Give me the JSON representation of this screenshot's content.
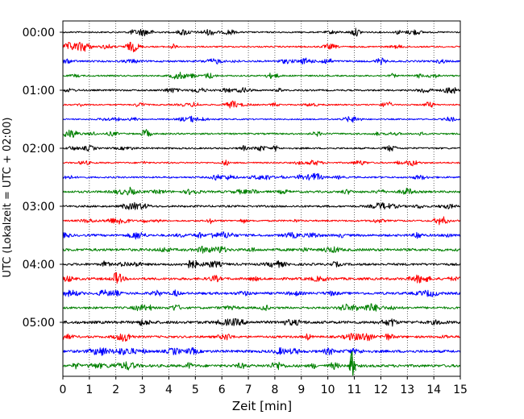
{
  "chart_data": {
    "type": "line",
    "subtype": "helicorder",
    "title": "",
    "xlabel": "Zeit  [min]",
    "ylabel": "UTC (Lokalzeit = UTC + 02:00)",
    "xlim": [
      0,
      15
    ],
    "x_ticks": [
      "0",
      "1",
      "2",
      "3",
      "4",
      "5",
      "6",
      "7",
      "8",
      "9",
      "10",
      "11",
      "12",
      "13",
      "14",
      "15"
    ],
    "y_tick_labels": [
      "00:00",
      "01:00",
      "02:00",
      "03:00",
      "04:00",
      "05:00"
    ],
    "grid": "vertical dotted",
    "trace_colors": [
      "#000000",
      "#ff0000",
      "#0000ff",
      "#008000"
    ],
    "traces": [
      {
        "start": "00:00",
        "amplitude": 0.9
      },
      {
        "start": "00:15",
        "amplitude": 0.9
      },
      {
        "start": "00:30",
        "amplitude": 1.1
      },
      {
        "start": "00:45",
        "amplitude": 0.9
      },
      {
        "start": "01:00",
        "amplitude": 1.0
      },
      {
        "start": "01:15",
        "amplitude": 0.8
      },
      {
        "start": "01:30",
        "amplitude": 0.8
      },
      {
        "start": "01:45",
        "amplitude": 1.0
      },
      {
        "start": "02:00",
        "amplitude": 1.0
      },
      {
        "start": "02:15",
        "amplitude": 0.9
      },
      {
        "start": "02:30",
        "amplitude": 1.0
      },
      {
        "start": "02:45",
        "amplitude": 1.3
      },
      {
        "start": "03:00",
        "amplitude": 1.2
      },
      {
        "start": "03:15",
        "amplitude": 1.0
      },
      {
        "start": "03:30",
        "amplitude": 1.4
      },
      {
        "start": "03:45",
        "amplitude": 1.6
      },
      {
        "start": "04:00",
        "amplitude": 1.4
      },
      {
        "start": "04:15",
        "amplitude": 1.5
      },
      {
        "start": "04:30",
        "amplitude": 1.5
      },
      {
        "start": "04:45",
        "amplitude": 1.3
      },
      {
        "start": "05:00",
        "amplitude": 1.7
      },
      {
        "start": "05:15",
        "amplitude": 1.3
      },
      {
        "start": "05:30",
        "amplitude": 1.6
      },
      {
        "start": "05:45",
        "amplitude": 1.6
      }
    ],
    "events": [
      {
        "trace": 23,
        "time_min": 10.9,
        "peak_amplitude": 8
      }
    ]
  }
}
